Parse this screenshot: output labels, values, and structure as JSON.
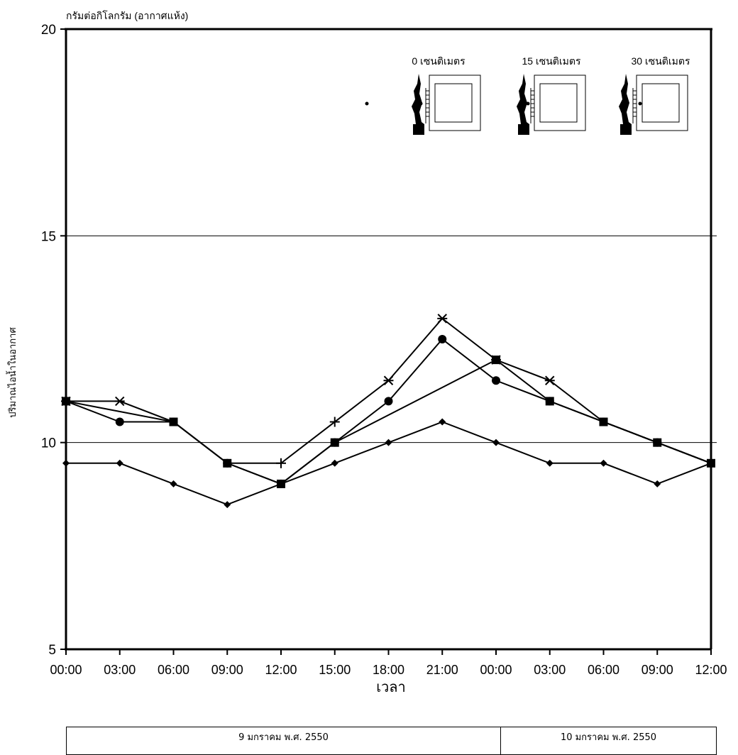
{
  "chart_data": {
    "type": "line",
    "ylabel_top": "กรัมต่อกิโลกรัม (อากาศแห้ง)",
    "ylabel": "ปริมาณไอน้ำในอากาศ",
    "xlabel": "เวลา",
    "ylim": [
      5,
      20
    ],
    "yticks": [
      5,
      10,
      15,
      20
    ],
    "gridlines": [
      10,
      15
    ],
    "categories": [
      "00:00",
      "03:00",
      "06:00",
      "09:00",
      "12:00",
      "15:00",
      "18:00",
      "21:00",
      "00:00",
      "03:00",
      "06:00",
      "09:00",
      "12:00"
    ],
    "series": [
      {
        "marker": "diamond",
        "values": [
          9.5,
          9.5,
          9.0,
          8.5,
          9.0,
          9.5,
          10.0,
          10.5,
          10.0,
          9.5,
          9.5,
          9.0,
          9.5
        ]
      },
      {
        "marker": "circle",
        "values": [
          11.0,
          10.5,
          10.5,
          9.5,
          9.0,
          10.0,
          11.0,
          12.5,
          11.5,
          11.0,
          10.5,
          10.0,
          9.5
        ]
      },
      {
        "marker": "square",
        "values": [
          11.0,
          null,
          10.5,
          9.5,
          9.0,
          10.0,
          null,
          null,
          12.0,
          11.0,
          10.5,
          10.0,
          9.5
        ]
      },
      {
        "marker": "star",
        "values": [
          11.0,
          11.0,
          null,
          null,
          null,
          null,
          11.5,
          13.0,
          12.0,
          11.5,
          null,
          null,
          null
        ]
      },
      {
        "marker": "plus",
        "values": [
          null,
          null,
          null,
          null,
          9.5,
          10.5,
          null,
          null,
          null,
          null,
          null,
          null,
          null
        ]
      }
    ],
    "legend": [
      {
        "label": "0 เซนติเมตร"
      },
      {
        "label": "15 เซนติเมตร"
      },
      {
        "label": "30 เซนติเมตร"
      }
    ]
  },
  "dates": {
    "day1": "9 มกราคม พ.ศ. 2550",
    "day2": "10 มกราคม พ.ศ. 2550"
  }
}
